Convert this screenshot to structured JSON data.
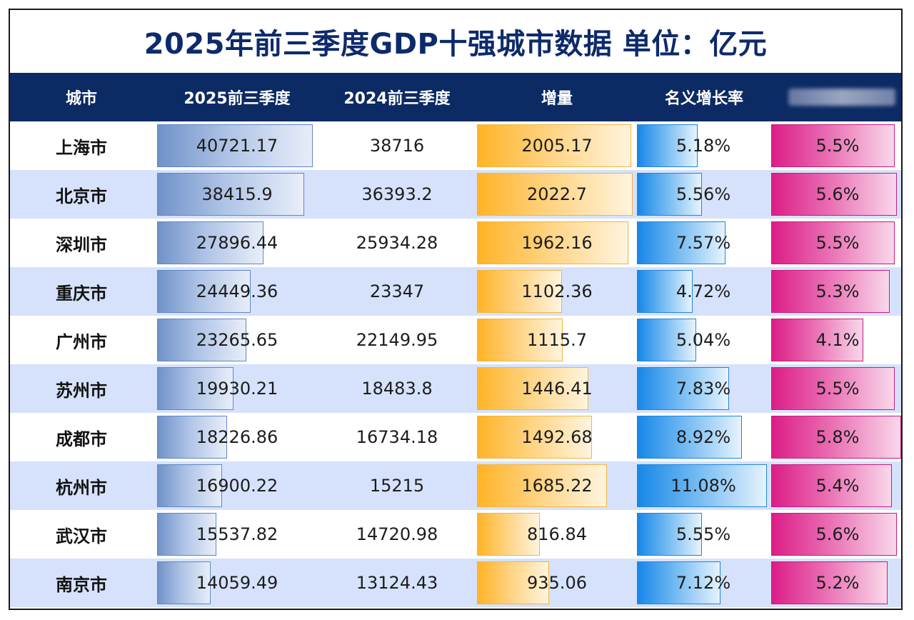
{
  "title": "2025年前三季度GDP十强城市数据   单位：亿元",
  "headers": [
    "城市",
    "2025前三季度",
    "2024前三季度",
    "增量",
    "名义增长率"
  ],
  "colors": {
    "header_bg": "#0c2a63",
    "title": "#0d2a6b",
    "alt_row": "#d6e2fb",
    "gdp_2025_bar": "#7092c9",
    "increase_bar": "#ffb326",
    "nominal_rate_bar": "#1787e8",
    "last_column_bar": "#dc1d86"
  },
  "chart_data": {
    "type": "table",
    "title": "2025年前三季度GDP十强城市数据   单位：亿元",
    "columns": [
      "城市",
      "2025前三季度",
      "2024前三季度",
      "增量",
      "名义增长率",
      ""
    ],
    "rows": [
      {
        "city": "上海市",
        "gdp2025": "40721.17",
        "gdp2024": "38716",
        "increase": "2005.17",
        "nominal": "5.18%",
        "last": "5.5%"
      },
      {
        "city": "北京市",
        "gdp2025": "38415.9",
        "gdp2024": "36393.2",
        "increase": "2022.7",
        "nominal": "5.56%",
        "last": "5.6%"
      },
      {
        "city": "深圳市",
        "gdp2025": "27896.44",
        "gdp2024": "25934.28",
        "increase": "1962.16",
        "nominal": "7.57%",
        "last": "5.5%"
      },
      {
        "city": "重庆市",
        "gdp2025": "24449.36",
        "gdp2024": "23347",
        "increase": "1102.36",
        "nominal": "4.72%",
        "last": "5.3%"
      },
      {
        "city": "广州市",
        "gdp2025": "23265.65",
        "gdp2024": "22149.95",
        "increase": "1115.7",
        "nominal": "5.04%",
        "last": "4.1%"
      },
      {
        "city": "苏州市",
        "gdp2025": "19930.21",
        "gdp2024": "18483.8",
        "increase": "1446.41",
        "nominal": "7.83%",
        "last": "5.5%"
      },
      {
        "city": "成都市",
        "gdp2025": "18226.86",
        "gdp2024": "16734.18",
        "increase": "1492.68",
        "nominal": "8.92%",
        "last": "5.8%"
      },
      {
        "city": "杭州市",
        "gdp2025": "16900.22",
        "gdp2024": "15215",
        "increase": "1685.22",
        "nominal": "11.08%",
        "last": "5.4%"
      },
      {
        "city": "武汉市",
        "gdp2025": "15537.82",
        "gdp2024": "14720.98",
        "increase": "816.84",
        "nominal": "5.55%",
        "last": "5.6%"
      },
      {
        "city": "南京市",
        "gdp2025": "14059.49",
        "gdp2024": "13124.43",
        "increase": "935.06",
        "nominal": "7.12%",
        "last": "5.2%"
      }
    ],
    "data_bar_scales": {
      "gdp2025": [
        0,
        40721.17
      ],
      "increase": [
        0,
        2022.7
      ],
      "nominal": [
        0,
        11.08
      ],
      "last": [
        0,
        5.8
      ]
    }
  }
}
